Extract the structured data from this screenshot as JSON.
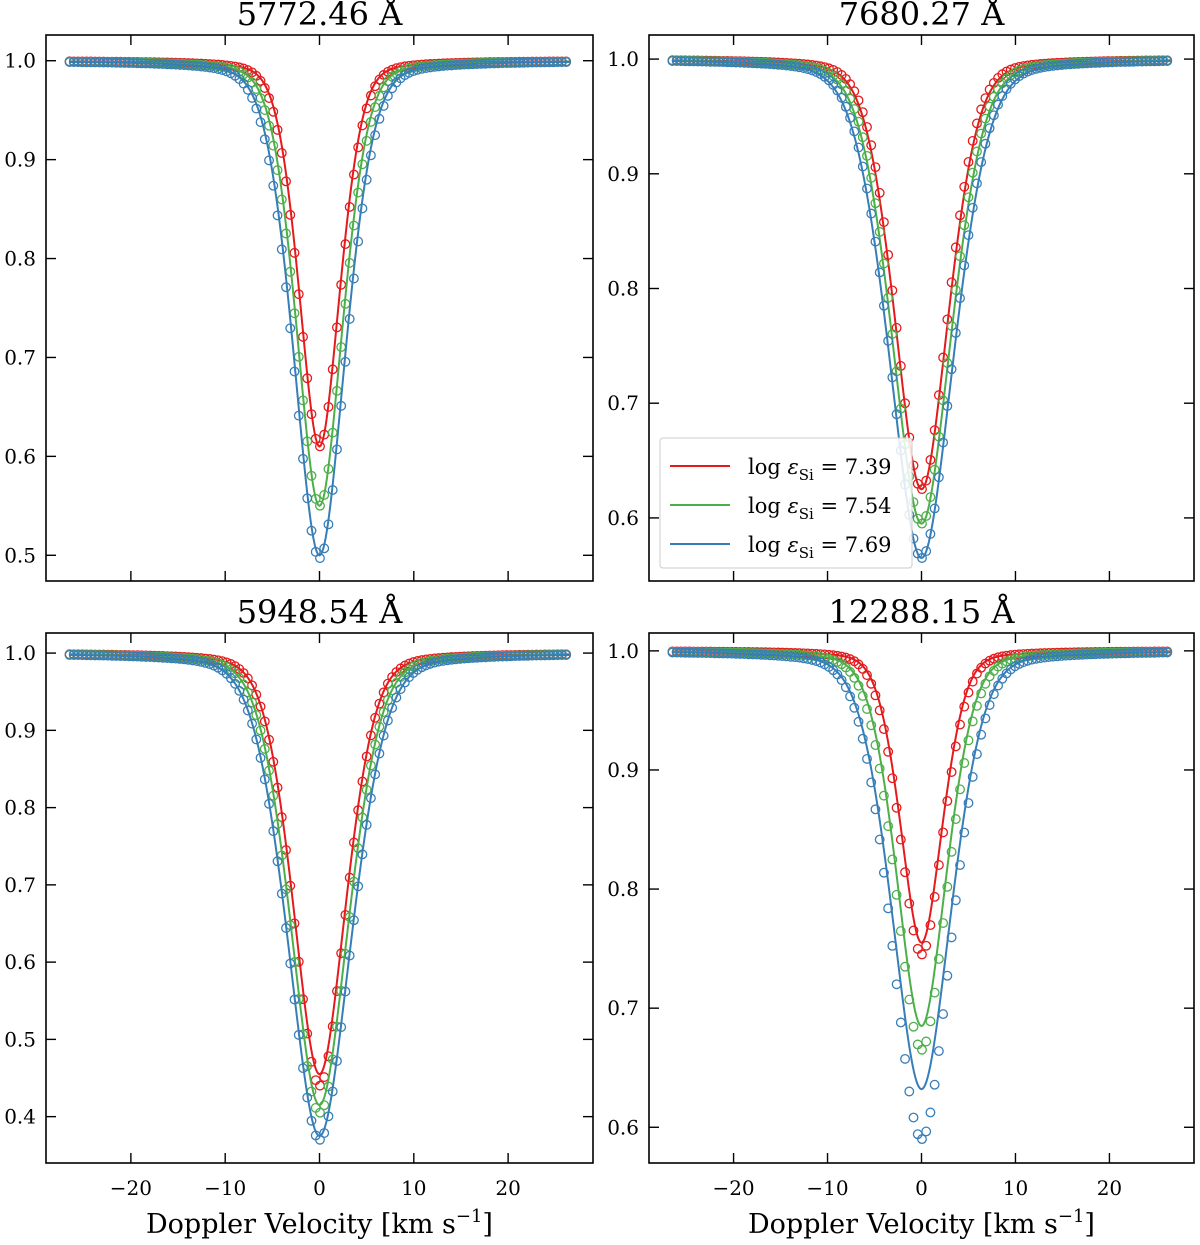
{
  "chart_data": [
    {
      "type": "line",
      "title": "5772.46 Å",
      "xlabel": "",
      "ylabel": "",
      "xlim": [
        -29,
        29
      ],
      "ylim": [
        0.474,
        1.026
      ],
      "xticks": [
        -20,
        -10,
        0,
        10,
        20
      ],
      "xtick_labels": [],
      "yticks": [
        0.5,
        0.6,
        0.7,
        0.8,
        0.9,
        1.0
      ],
      "ytick_labels": [
        "0.5",
        "0.6",
        "0.7",
        "0.8",
        "0.9",
        "1.0"
      ],
      "x_range": [
        -26.5,
        26.5
      ],
      "series": [
        {
          "name": "log εSi = 7.39",
          "color": "#e41a1c",
          "min_line": 0.61,
          "min_markers": 0.61,
          "line_width": 1.55,
          "marker_width": 1.6
        },
        {
          "name": "log εSi = 7.54",
          "color": "#4daf4a",
          "min_line": 0.55,
          "min_markers": 0.55,
          "line_width": 1.75,
          "marker_width": 1.8
        },
        {
          "name": "log εSi = 7.69",
          "color": "#377eb8",
          "min_line": 0.5,
          "min_markers": 0.497,
          "line_width": 1.95,
          "marker_width": 2.0
        }
      ],
      "legend": null
    },
    {
      "type": "line",
      "title": "7680.27 Å",
      "xlabel": "",
      "ylabel": "",
      "xlim": [
        -29,
        29
      ],
      "ylim": [
        0.545,
        1.021
      ],
      "xticks": [
        -20,
        -10,
        0,
        10,
        20
      ],
      "xtick_labels": [],
      "yticks": [
        0.6,
        0.7,
        0.8,
        0.9,
        1.0
      ],
      "ytick_labels": [
        "0.6",
        "0.7",
        "0.8",
        "0.9",
        "1.0"
      ],
      "x_range": [
        -26.5,
        26.5
      ],
      "series": [
        {
          "name": "log εSi = 7.39",
          "color": "#e41a1c",
          "min_line": 0.625,
          "min_markers": 0.625,
          "line_width": 2.05,
          "marker_width": 2.0
        },
        {
          "name": "log εSi = 7.54",
          "color": "#4daf4a",
          "min_line": 0.595,
          "min_markers": 0.595,
          "line_width": 2.25,
          "marker_width": 2.2
        },
        {
          "name": "log εSi = 7.69",
          "color": "#377eb8",
          "min_line": 0.565,
          "min_markers": 0.565,
          "line_width": 2.45,
          "marker_width": 2.4
        }
      ],
      "legend": {
        "position": "lower-left",
        "entries": [
          {
            "prefix": "log ",
            "symbol": "ε",
            "subscript": "Si",
            "value": " = 7.39"
          },
          {
            "prefix": "log ",
            "symbol": "ε",
            "subscript": "Si",
            "value": " = 7.54"
          },
          {
            "prefix": "log ",
            "symbol": "ε",
            "subscript": "Si",
            "value": " = 7.69"
          }
        ]
      }
    },
    {
      "type": "line",
      "title": "5948.54 Å",
      "xlabel": "Doppler Velocity [km s−1]",
      "ylabel": "",
      "xlim": [
        -29,
        29
      ],
      "ylim": [
        0.34,
        1.026
      ],
      "xticks": [
        -20,
        -10,
        0,
        10,
        20
      ],
      "xtick_labels": [
        "−20",
        "−10",
        "0",
        "10",
        "20"
      ],
      "yticks": [
        0.4,
        0.5,
        0.6,
        0.7,
        0.8,
        0.9,
        1.0
      ],
      "ytick_labels": [
        "0.4",
        "0.5",
        "0.6",
        "0.7",
        "0.8",
        "0.9",
        "1.0"
      ],
      "x_range": [
        -26.5,
        26.5
      ],
      "series": [
        {
          "name": "log εSi = 7.39",
          "color": "#e41a1c",
          "min_line": 0.455,
          "min_markers": 0.44,
          "line_width": 2.0,
          "marker_width": 2.0
        },
        {
          "name": "log εSi = 7.54",
          "color": "#4daf4a",
          "min_line": 0.415,
          "min_markers": 0.405,
          "line_width": 2.2,
          "marker_width": 2.2
        },
        {
          "name": "log εSi = 7.69",
          "color": "#377eb8",
          "min_line": 0.375,
          "min_markers": 0.37,
          "line_width": 2.4,
          "marker_width": 2.4
        }
      ],
      "legend": null
    },
    {
      "type": "line",
      "title": "12288.15 Å",
      "xlabel": "Doppler Velocity [km s−1]",
      "ylabel": "",
      "xlim": [
        -29,
        29
      ],
      "ylim": [
        0.57,
        1.015
      ],
      "xticks": [
        -20,
        -10,
        0,
        10,
        20
      ],
      "xtick_labels": [
        "−20",
        "−10",
        "0",
        "10",
        "20"
      ],
      "yticks": [
        0.6,
        0.7,
        0.8,
        0.9,
        1.0
      ],
      "ytick_labels": [
        "0.6",
        "0.7",
        "0.8",
        "0.9",
        "1.0"
      ],
      "x_range": [
        -26.5,
        26.5
      ],
      "series": [
        {
          "name": "log εSi = 7.39",
          "color": "#e41a1c",
          "min_line": 0.755,
          "min_markers": 0.745,
          "line_width": 1.6,
          "marker_width": 1.65
        },
        {
          "name": "log εSi = 7.54",
          "color": "#4daf4a",
          "min_line": 0.685,
          "min_markers": 0.665,
          "line_width": 1.9,
          "marker_width": 1.95
        },
        {
          "name": "log εSi = 7.69",
          "color": "#377eb8",
          "min_line": 0.632,
          "min_markers": 0.59,
          "line_width": 2.25,
          "marker_width": 2.25
        }
      ],
      "legend": null
    }
  ]
}
